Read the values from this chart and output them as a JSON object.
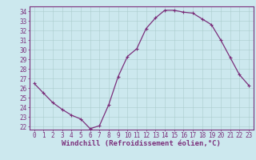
{
  "x": [
    0,
    1,
    2,
    3,
    4,
    5,
    6,
    7,
    8,
    9,
    10,
    11,
    12,
    13,
    14,
    15,
    16,
    17,
    18,
    19,
    20,
    21,
    22,
    23
  ],
  "y": [
    26.5,
    25.5,
    24.5,
    23.8,
    23.2,
    22.8,
    21.8,
    22.1,
    24.3,
    27.2,
    29.3,
    30.1,
    32.2,
    33.3,
    34.1,
    34.1,
    33.9,
    33.8,
    33.2,
    32.6,
    31.0,
    29.2,
    27.4,
    26.3
  ],
  "line_color": "#7b2f7b",
  "marker": "+",
  "marker_size": 3.5,
  "marker_linewidth": 0.8,
  "bg_color": "#cce8ee",
  "grid_color": "#aacccc",
  "xlabel": "Windchill (Refroidissement éolien,°C)",
  "xlim": [
    -0.5,
    23.5
  ],
  "ylim": [
    21.7,
    34.5
  ],
  "yticks": [
    22,
    23,
    24,
    25,
    26,
    27,
    28,
    29,
    30,
    31,
    32,
    33,
    34
  ],
  "xticks": [
    0,
    1,
    2,
    3,
    4,
    5,
    6,
    7,
    8,
    9,
    10,
    11,
    12,
    13,
    14,
    15,
    16,
    17,
    18,
    19,
    20,
    21,
    22,
    23
  ],
  "tick_label_fontsize": 5.5,
  "xlabel_fontsize": 6.5,
  "tick_color": "#7b2f7b",
  "spine_color": "#7b2f7b",
  "line_width": 0.9
}
